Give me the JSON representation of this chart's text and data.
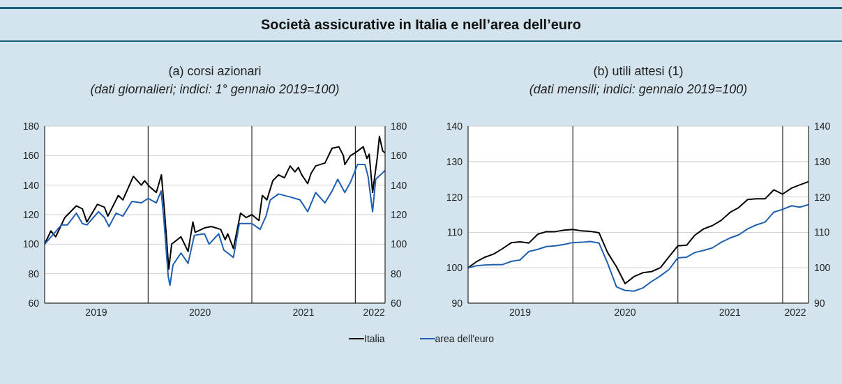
{
  "chart_data": [
    {
      "type": "other",
      "title": "Società assicurative in Italia e nell’area dell’euro"
    },
    {
      "type": "line",
      "title": "(a) corsi azionari",
      "subtitle": "(dati giornalieri; indici: 1° gennaio 2019=100)",
      "legend": "bottom",
      "grid": "y",
      "xlim": [
        "2019-01-01",
        "2022-04-16"
      ],
      "xticks": [
        {
          "value": "2019-07-02",
          "label": "2019"
        },
        {
          "value": "2020-07-02",
          "label": "2020"
        },
        {
          "value": "2021-07-02",
          "label": "2021"
        },
        {
          "value": "2022-03-08",
          "label": "2022"
        }
      ],
      "ylim": [
        60,
        180
      ],
      "yticks": [
        60,
        80,
        100,
        120,
        140,
        160,
        180
      ],
      "y2lim": [
        60,
        180
      ],
      "y2ticks": [
        60,
        80,
        100,
        120,
        140,
        160,
        180
      ],
      "ref_lines": [
        {
          "axis": "x",
          "value": "2020-01-01",
          "color": "#000000"
        },
        {
          "axis": "x",
          "value": "2021-01-01",
          "color": "#000000"
        },
        {
          "axis": "x",
          "value": "2022-01-01",
          "color": "#000000"
        }
      ],
      "series": [
        {
          "name": "Italia",
          "color": "#000000",
          "x": [
            "2019-01-01",
            "2019-01-23",
            "2019-02-09",
            "2019-03-13",
            "2019-04-23",
            "2019-05-14",
            "2019-05-30",
            "2019-07-06",
            "2019-07-31",
            "2019-08-12",
            "2019-09-18",
            "2019-10-04",
            "2019-11-10",
            "2019-12-08",
            "2019-12-20",
            "2020-01-06",
            "2020-01-30",
            "2020-02-17",
            "2020-02-28",
            "2020-03-14",
            "2020-03-24",
            "2020-04-26",
            "2020-05-21",
            "2020-06-07",
            "2020-06-15",
            "2020-07-18",
            "2020-08-11",
            "2020-09-13",
            "2020-09-29",
            "2020-10-08",
            "2020-10-28",
            "2020-11-22",
            "2020-12-12",
            "2021-01-01",
            "2021-01-26",
            "2021-02-07",
            "2021-02-23",
            "2021-03-16",
            "2021-04-05",
            "2021-04-26",
            "2021-05-16",
            "2021-06-02",
            "2021-06-14",
            "2021-06-26",
            "2021-07-17",
            "2021-07-29",
            "2021-08-14",
            "2021-09-16",
            "2021-10-11",
            "2021-11-04",
            "2021-11-20",
            "2021-11-25",
            "2021-12-15",
            "2022-01-01",
            "2022-01-29",
            "2022-02-11",
            "2022-02-19",
            "2022-03-03",
            "2022-03-19",
            "2022-03-27",
            "2022-04-08",
            "2022-04-16"
          ],
          "values": [
            100,
            109,
            105,
            118,
            126,
            124,
            115,
            127,
            125,
            119,
            133,
            130,
            146,
            140,
            143,
            139,
            135,
            147,
            122,
            83,
            100,
            105,
            95,
            115,
            108,
            111,
            112,
            110,
            103,
            107,
            97,
            121,
            118,
            120,
            116,
            133,
            130,
            143,
            147,
            145,
            153,
            149,
            152,
            147,
            141,
            148,
            153,
            155,
            165,
            166,
            160,
            154,
            160,
            162,
            166,
            158,
            161,
            135,
            158,
            173,
            163,
            162
          ]
        },
        {
          "name": "area dell'euro",
          "color": "#1f5fb0",
          "x": [
            "2019-01-01",
            "2019-03-01",
            "2019-03-22",
            "2019-04-23",
            "2019-05-14",
            "2019-05-30",
            "2019-07-10",
            "2019-07-31",
            "2019-08-16",
            "2019-09-10",
            "2019-10-04",
            "2019-11-05",
            "2019-12-08",
            "2020-01-01",
            "2020-01-30",
            "2020-02-16",
            "2020-02-26",
            "2020-03-12",
            "2020-03-18",
            "2020-03-29",
            "2020-04-26",
            "2020-05-21",
            "2020-06-12",
            "2020-07-18",
            "2020-08-03",
            "2020-09-06",
            "2020-09-24",
            "2020-10-28",
            "2020-11-18",
            "2021-01-01",
            "2021-01-30",
            "2021-02-20",
            "2021-03-07",
            "2021-04-05",
            "2021-05-16",
            "2021-06-20",
            "2021-07-17",
            "2021-08-14",
            "2021-09-16",
            "2021-10-11",
            "2021-10-31",
            "2021-11-25",
            "2021-12-15",
            "2022-01-09",
            "2022-02-04",
            "2022-02-15",
            "2022-03-03",
            "2022-03-14",
            "2022-03-31",
            "2022-04-16"
          ],
          "values": [
            100,
            113,
            113,
            121,
            114,
            113,
            122,
            118,
            112,
            121,
            119,
            129,
            128,
            131,
            128,
            136,
            116,
            78,
            72,
            86,
            94,
            87,
            106,
            107,
            100,
            107,
            96,
            91,
            114,
            114,
            110,
            119,
            130,
            134,
            132,
            130,
            122,
            135,
            128,
            136,
            144,
            135,
            142,
            154,
            154,
            146,
            122,
            144,
            147,
            150
          ]
        }
      ]
    },
    {
      "type": "line",
      "title": "(b) utili attesi (1)",
      "subtitle": "(dati mensili; indici: gennaio 2019=100)",
      "grid": "y",
      "xlim": [
        "2019-01",
        "2022-04"
      ],
      "xticks": [
        {
          "value": "2019-07-01",
          "label": "2019"
        },
        {
          "value": "2020-07-01",
          "label": "2020"
        },
        {
          "value": "2021-07-01",
          "label": "2021"
        },
        {
          "value": "2022-02-14",
          "label": "2022"
        }
      ],
      "ylim": [
        90,
        140
      ],
      "yticks": [
        90,
        100,
        110,
        120,
        130,
        140
      ],
      "y2lim": [
        90,
        140
      ],
      "y2ticks": [
        90,
        100,
        110,
        120,
        130,
        140
      ],
      "ref_lines": [
        {
          "axis": "x",
          "value": "2020-01-01",
          "color": "#000000"
        },
        {
          "axis": "x",
          "value": "2021-01-01",
          "color": "#000000"
        },
        {
          "axis": "x",
          "value": "2022-01-01",
          "color": "#000000"
        }
      ],
      "x": [
        "2019-01",
        "2019-02",
        "2019-03",
        "2019-04",
        "2019-05",
        "2019-06",
        "2019-07",
        "2019-08",
        "2019-09",
        "2019-10",
        "2019-11",
        "2019-12",
        "2020-01",
        "2020-02",
        "2020-03",
        "2020-04",
        "2020-05",
        "2020-06",
        "2020-07",
        "2020-08",
        "2020-09",
        "2020-10",
        "2020-11",
        "2020-12",
        "2021-01",
        "2021-02",
        "2021-03",
        "2021-04",
        "2021-05",
        "2021-06",
        "2021-07",
        "2021-08",
        "2021-09",
        "2021-10",
        "2021-11",
        "2021-12",
        "2022-01",
        "2022-02",
        "2022-03",
        "2022-04"
      ],
      "series": [
        {
          "color": "#000000",
          "values": [
            100,
            101.8,
            103,
            103.9,
            105.4,
            107.1,
            107.3,
            107,
            109.5,
            110.2,
            110.2,
            110.6,
            110.8,
            110.4,
            110.3,
            109.9,
            104.3,
            100.3,
            95.5,
            97.5,
            98.6,
            98.9,
            100,
            103.1,
            106.2,
            106.4,
            109.2,
            111,
            111.9,
            113.4,
            115.6,
            117,
            119.3,
            119.5,
            119.5,
            122,
            120.8,
            122.5,
            123.4,
            124.3
          ]
        },
        {
          "color": "#1f5fb0",
          "values": [
            100,
            100.6,
            100.8,
            100.9,
            100.9,
            101.8,
            102.2,
            104.6,
            105.2,
            106,
            106.2,
            106.6,
            107.1,
            107.2,
            107.4,
            107,
            101.3,
            94.6,
            93.6,
            93.4,
            94.3,
            96.1,
            97.7,
            99.5,
            102.8,
            103,
            104.3,
            104.9,
            105.6,
            107.2,
            108.4,
            109.3,
            111,
            112.1,
            112.9,
            115.7,
            116.5,
            117.5,
            117.1,
            117.8
          ]
        }
      ]
    }
  ]
}
